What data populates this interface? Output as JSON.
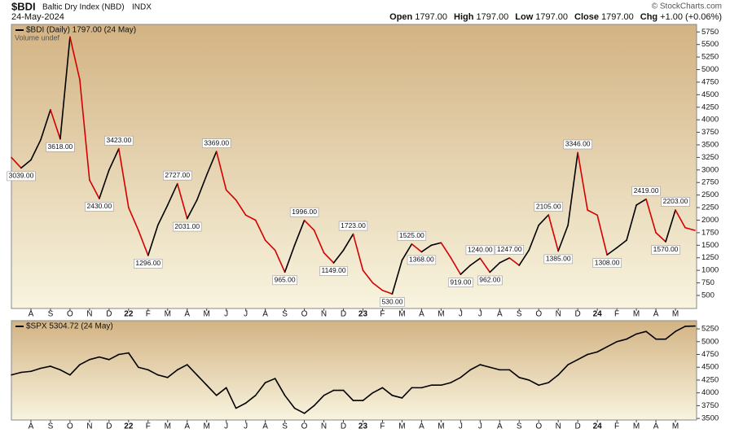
{
  "header": {
    "symbol": "$BDI",
    "name": "Baltic Dry Index (NBD)",
    "exchange": "INDX",
    "date": "24-May-2024",
    "copyright": "© StockCharts.com",
    "quote": [
      {
        "label": "Open",
        "value": "1797.00"
      },
      {
        "label": "High",
        "value": "1797.00"
      },
      {
        "label": "Low",
        "value": "1797.00"
      },
      {
        "label": "Close",
        "value": "1797.00"
      },
      {
        "label": "Chg",
        "value": "+1.00 (+0.06%)"
      }
    ]
  },
  "chart_data": [
    {
      "type": "line",
      "title": "$BDI (Daily) 1797.00 (24 May)",
      "subtitle": "Volume undef",
      "categories": [
        null,
        null,
        "A",
        null,
        "S",
        null,
        "O",
        null,
        "N",
        null,
        "D",
        null,
        "22",
        null,
        "F",
        null,
        "M",
        null,
        "A",
        null,
        "M",
        null,
        "J",
        null,
        "J",
        null,
        "A",
        null,
        "S",
        null,
        "O",
        null,
        "N",
        null,
        "D",
        null,
        "23",
        null,
        "F",
        null,
        "M",
        null,
        "A",
        null,
        "M",
        null,
        "J",
        null,
        "J",
        null,
        "A",
        null,
        "S",
        null,
        "O",
        null,
        "N",
        null,
        "D",
        null,
        "24",
        null,
        "F",
        null,
        "M",
        null,
        "A",
        null,
        "M",
        null,
        null
      ],
      "series": [
        {
          "name": "$BDI",
          "up_color": "#000000",
          "down_color": "#d40000",
          "values": [
            3250,
            3039,
            3200,
            3600,
            4200,
            3618,
            5650,
            4800,
            2800,
            2430,
            3000,
            3423,
            2250,
            1800,
            1296,
            1900,
            2300,
            2727,
            2031,
            2400,
            2900,
            3369,
            2600,
            2400,
            2100,
            2000,
            1600,
            1400,
            965,
            1500,
            1996,
            1800,
            1350,
            1149,
            1400,
            1723,
            1000,
            750,
            600,
            530,
            1200,
            1525,
            1368,
            1500,
            1550,
            1250,
            919,
            1100,
            1240,
            962,
            1150,
            1247,
            1100,
            1400,
            1900,
            2105,
            1385,
            1900,
            3346,
            2200,
            2100,
            1308,
            1450,
            1600,
            2300,
            2419,
            1750,
            1570,
            2203,
            1850,
            1797
          ],
          "value_labels": [
            null,
            "3039.00",
            null,
            null,
            null,
            "3618.00",
            null,
            null,
            null,
            "2430.00",
            null,
            "3423.00",
            null,
            null,
            "1296.00",
            null,
            null,
            "2727.00",
            "2031.00",
            null,
            null,
            "3369.00",
            null,
            null,
            null,
            null,
            null,
            null,
            "965.00",
            null,
            "1996.00",
            null,
            null,
            "1149.00",
            null,
            "1723.00",
            null,
            null,
            null,
            "530.00",
            null,
            "1525.00",
            "1368.00",
            null,
            null,
            null,
            "919.00",
            null,
            "1240.00",
            "962.00",
            null,
            "1247.00",
            null,
            null,
            null,
            "2105.00",
            "1385.00",
            null,
            "3346.00",
            null,
            null,
            "1308.00",
            null,
            null,
            null,
            "2419.00",
            null,
            "1570.00",
            "2203.00",
            null,
            null
          ]
        }
      ],
      "ylim": [
        240,
        5900
      ],
      "yticks": [
        500,
        750,
        1000,
        1250,
        1500,
        1750,
        2000,
        2250,
        2500,
        2750,
        3000,
        3250,
        3500,
        3750,
        4000,
        4250,
        4500,
        4750,
        5000,
        5250,
        5500,
        5750
      ],
      "grid": false
    },
    {
      "type": "line",
      "title": "$SPX 5304.72 (24 May)",
      "categories": [
        null,
        null,
        "A",
        null,
        "S",
        null,
        "O",
        null,
        "N",
        null,
        "D",
        null,
        "22",
        null,
        "F",
        null,
        "M",
        null,
        "A",
        null,
        "M",
        null,
        "J",
        null,
        "J",
        null,
        "A",
        null,
        "S",
        null,
        "O",
        null,
        "N",
        null,
        "D",
        null,
        "23",
        null,
        "F",
        null,
        "M",
        null,
        "A",
        null,
        "M",
        null,
        "J",
        null,
        "J",
        null,
        "A",
        null,
        "S",
        null,
        "O",
        null,
        "N",
        null,
        "D",
        null,
        "24",
        null,
        "F",
        null,
        "M",
        null,
        "A",
        null,
        "M",
        null,
        null
      ],
      "series": [
        {
          "name": "$SPX",
          "color": "#000000",
          "values": [
            4350,
            4400,
            4420,
            4480,
            4520,
            4450,
            4350,
            4550,
            4650,
            4700,
            4650,
            4750,
            4780,
            4500,
            4450,
            4350,
            4300,
            4450,
            4550,
            4350,
            4150,
            3950,
            4100,
            3700,
            3800,
            3950,
            4200,
            4280,
            3950,
            3700,
            3600,
            3750,
            3950,
            4050,
            4050,
            3850,
            3850,
            4000,
            4100,
            3950,
            3900,
            4100,
            4100,
            4150,
            4150,
            4200,
            4300,
            4450,
            4550,
            4500,
            4450,
            4450,
            4300,
            4250,
            4150,
            4200,
            4350,
            4550,
            4650,
            4750,
            4800,
            4900,
            5000,
            5050,
            5150,
            5200,
            5050,
            5050,
            5200,
            5300,
            5305
          ]
        }
      ],
      "ylim": [
        3470,
        5410
      ],
      "yticks": [
        3500,
        3750,
        4000,
        4250,
        4500,
        4750,
        5000,
        5250
      ],
      "grid": false
    }
  ]
}
